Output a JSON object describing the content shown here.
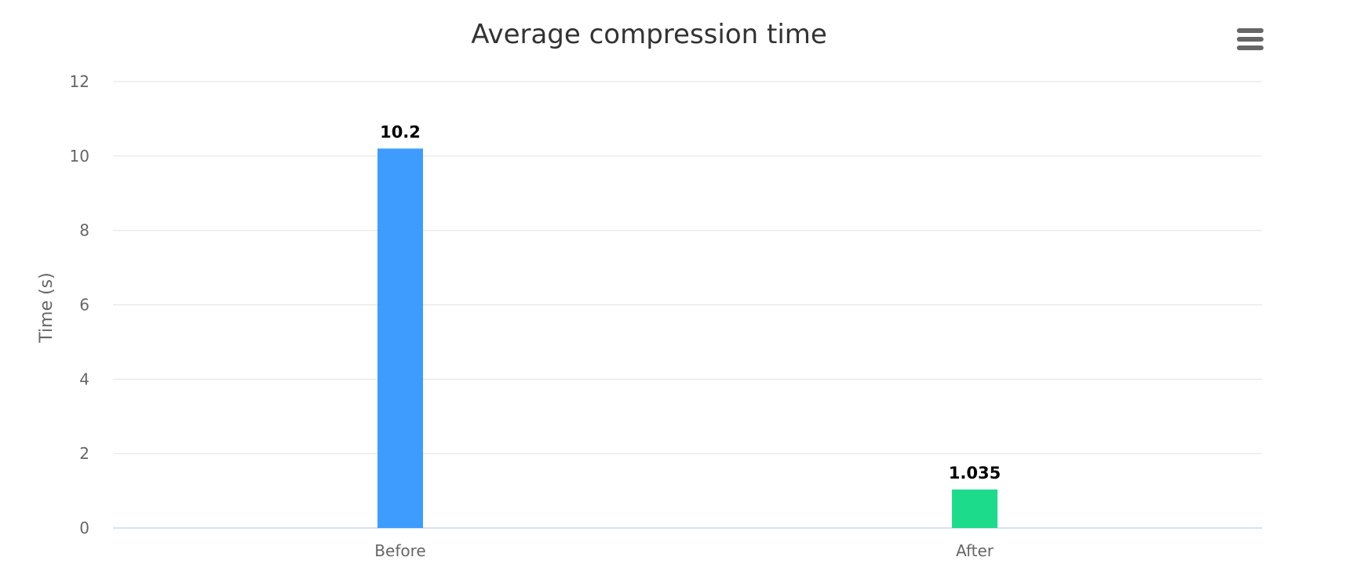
{
  "chart_data": {
    "type": "bar",
    "title": "Average compression time",
    "xlabel": "",
    "ylabel": "Time (s)",
    "categories": [
      "Before",
      "After"
    ],
    "values": [
      10.2,
      1.035
    ],
    "data_labels": [
      "10.2",
      "1.035"
    ],
    "bar_colors": [
      "#3f9cff",
      "#1cdc8c"
    ],
    "ylim": [
      0,
      12
    ],
    "yticks": [
      0,
      2,
      4,
      6,
      8,
      10,
      12
    ],
    "grid": true,
    "legend": "none"
  },
  "colors": {
    "grid": "#e6e6e6",
    "baseline": "#ccd6eb",
    "menu_icon": "#666666"
  },
  "menu": {
    "icon": "hamburger-menu-icon"
  }
}
